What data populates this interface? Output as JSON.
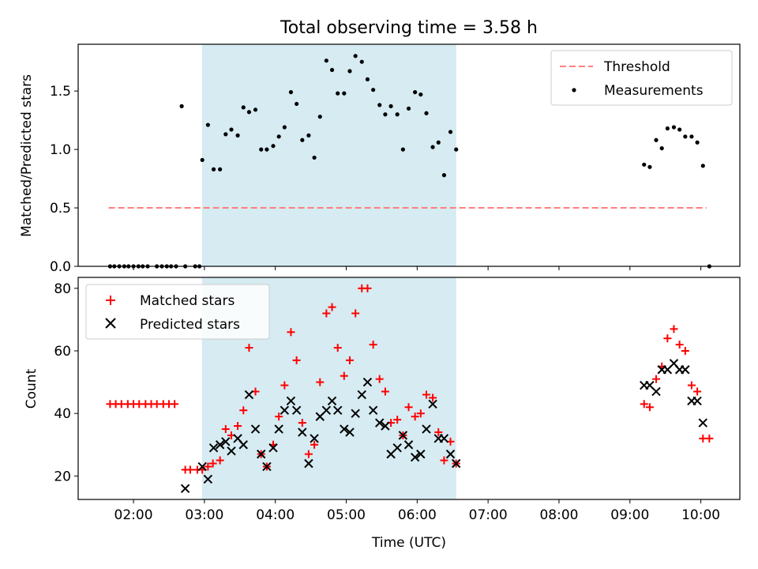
{
  "chart_data": {
    "title": "Total observing time = 3.58 h",
    "xlabel": "Time (UTC)",
    "x_tick_labels": [
      "02:00",
      "03:00",
      "04:00",
      "05:00",
      "06:00",
      "07:00",
      "08:00",
      "09:00",
      "10:00"
    ],
    "x_range_hours": [
      1.22,
      10.55
    ],
    "observing_window_hours": [
      2.967,
      6.55
    ],
    "colors": {
      "shade": "#add8e6",
      "matched": "#ff0000",
      "predicted": "#000000",
      "threshold": "#ff7f7f",
      "measurements": "#000000"
    },
    "panels": [
      {
        "type": "scatter",
        "ylabel": "Matched/Predicted stars",
        "ylim": [
          0,
          1.9
        ],
        "yticks": [
          0.0,
          0.5,
          1.0,
          1.5
        ],
        "ytick_labels": [
          "0.0",
          "0.5",
          "1.0",
          "1.5"
        ],
        "legend_position": "top-right",
        "legend": [
          "Threshold",
          "Measurements"
        ],
        "threshold": {
          "name": "Threshold",
          "value": 0.5,
          "x_range": [
            1.65,
            10.08
          ]
        },
        "series": [
          {
            "name": "Measurements",
            "x": [
              1.67,
              1.73,
              1.8,
              1.87,
              1.93,
              2.0,
              2.07,
              2.13,
              2.2,
              2.33,
              2.4,
              2.47,
              2.53,
              2.6,
              2.68,
              2.73,
              2.87,
              2.93,
              2.97,
              3.05,
              3.13,
              3.22,
              3.3,
              3.38,
              3.47,
              3.55,
              3.63,
              3.72,
              3.8,
              3.88,
              3.97,
              4.05,
              4.13,
              4.22,
              4.3,
              4.38,
              4.47,
              4.55,
              4.63,
              4.72,
              4.8,
              4.88,
              4.97,
              5.05,
              5.13,
              5.22,
              5.3,
              5.38,
              5.47,
              5.55,
              5.63,
              5.72,
              5.8,
              5.88,
              5.97,
              6.05,
              6.13,
              6.22,
              6.3,
              6.38,
              6.47,
              6.55,
              9.2,
              9.28,
              9.37,
              9.45,
              9.53,
              9.62,
              9.7,
              9.78,
              9.87,
              9.95,
              10.03,
              10.12
            ],
            "y": [
              0,
              0,
              0,
              0,
              0,
              0,
              0,
              0,
              0,
              0,
              0,
              0,
              0,
              0,
              1.37,
              0,
              0,
              0,
              0.91,
              1.21,
              0.83,
              0.83,
              1.13,
              1.17,
              1.12,
              1.36,
              1.32,
              1.34,
              1.0,
              1.0,
              1.03,
              1.11,
              1.19,
              1.49,
              1.39,
              1.08,
              1.12,
              0.93,
              1.28,
              1.76,
              1.68,
              1.48,
              1.48,
              1.67,
              1.8,
              1.75,
              1.6,
              1.51,
              1.38,
              1.3,
              1.37,
              1.3,
              1.0,
              1.35,
              1.49,
              1.47,
              1.31,
              1.02,
              1.06,
              0.78,
              1.15,
              1.0,
              0.87,
              0.85,
              1.08,
              1.01,
              1.18,
              1.19,
              1.17,
              1.11,
              1.11,
              1.06,
              0.86,
              0
            ]
          }
        ]
      },
      {
        "type": "scatter",
        "ylabel": "Count",
        "ylim": [
          12.5,
          83.5
        ],
        "yticks": [
          20,
          40,
          60,
          80
        ],
        "ytick_labels": [
          "20",
          "40",
          "60",
          "80"
        ],
        "legend_position": "top-left",
        "legend": [
          "Matched stars",
          "Predicted stars"
        ],
        "series": [
          {
            "name": "Matched stars",
            "marker": "+",
            "x": [
              1.67,
              1.75,
              1.83,
              1.92,
              2.0,
              2.08,
              2.17,
              2.25,
              2.33,
              2.42,
              2.5,
              2.58,
              2.73,
              2.8,
              2.9,
              2.97,
              3.05,
              3.12,
              3.22,
              3.3,
              3.38,
              3.47,
              3.55,
              3.63,
              3.72,
              3.8,
              3.88,
              3.97,
              4.05,
              4.13,
              4.22,
              4.3,
              4.38,
              4.47,
              4.55,
              4.63,
              4.72,
              4.8,
              4.88,
              4.97,
              5.05,
              5.13,
              5.22,
              5.3,
              5.38,
              5.47,
              5.55,
              5.63,
              5.72,
              5.8,
              5.88,
              5.97,
              6.05,
              6.13,
              6.22,
              6.3,
              6.38,
              6.47,
              6.55,
              9.2,
              9.28,
              9.37,
              9.45,
              9.53,
              9.62,
              9.7,
              9.78,
              9.87,
              9.95,
              10.03,
              10.12
            ],
            "y": [
              43,
              43,
              43,
              43,
              43,
              43,
              43,
              43,
              43,
              43,
              43,
              43,
              22,
              22,
              22,
              22,
              23,
              24,
              25,
              35,
              33,
              36,
              41,
              61,
              47,
              27,
              23,
              30,
              39,
              49,
              66,
              57,
              37,
              27,
              30,
              50,
              72,
              74,
              61,
              52,
              57,
              72,
              80,
              80,
              62,
              51,
              47,
              37,
              38,
              33,
              42,
              39,
              40,
              46,
              45,
              34,
              25,
              31,
              24,
              43,
              42,
              51,
              55,
              64,
              67,
              62,
              60,
              49,
              47,
              32,
              32
            ]
          },
          {
            "name": "Predicted stars",
            "marker": "x",
            "x": [
              2.73,
              2.97,
              3.05,
              3.13,
              3.22,
              3.3,
              3.38,
              3.47,
              3.55,
              3.63,
              3.72,
              3.8,
              3.88,
              3.97,
              4.05,
              4.13,
              4.22,
              4.3,
              4.38,
              4.47,
              4.55,
              4.63,
              4.72,
              4.8,
              4.88,
              4.97,
              5.05,
              5.13,
              5.22,
              5.3,
              5.38,
              5.47,
              5.55,
              5.63,
              5.72,
              5.8,
              5.88,
              5.97,
              6.05,
              6.13,
              6.22,
              6.3,
              6.38,
              6.47,
              6.55,
              9.2,
              9.28,
              9.37,
              9.45,
              9.53,
              9.62,
              9.7,
              9.78,
              9.87,
              9.95,
              10.03
            ],
            "y": [
              16,
              23,
              19,
              29,
              30,
              31,
              28,
              32,
              30,
              46,
              35,
              27,
              23,
              29,
              35,
              41,
              44,
              41,
              34,
              24,
              32,
              39,
              41,
              44,
              41,
              35,
              34,
              40,
              46,
              50,
              41,
              37,
              36,
              27,
              29,
              33,
              30,
              26,
              27,
              35,
              43,
              32,
              32,
              27,
              24,
              49,
              49,
              47,
              54,
              54,
              56,
              54,
              54,
              44,
              44,
              37
            ]
          }
        ]
      }
    ]
  }
}
